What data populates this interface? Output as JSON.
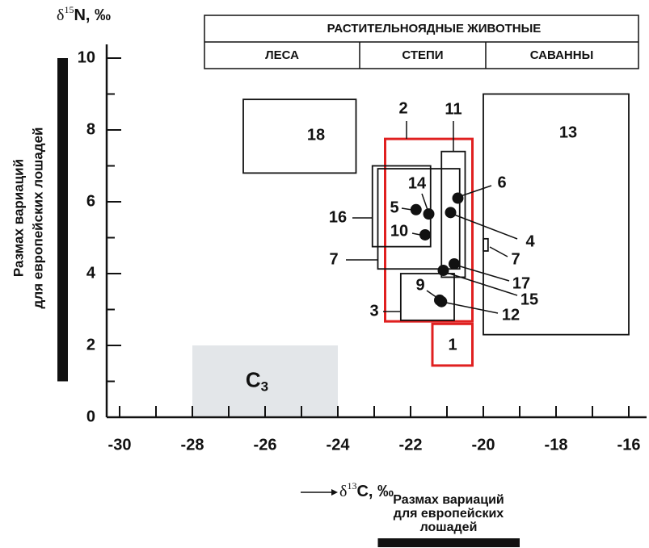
{
  "chart_data": {
    "type": "range-scatter",
    "y_label": {
      "symbol": "δ",
      "sup": "15",
      "text": "N, ‰"
    },
    "x_label": {
      "symbol": "δ",
      "sup": "13",
      "text": "C, ‰"
    },
    "header": {
      "title": "РАСТИТЕЛЬНОЯДНЫЕ  ЖИВОТНЫЕ",
      "columns": [
        "ЛЕСА",
        "СТЕПИ",
        "САВАННЫ"
      ]
    },
    "horse_range_y": {
      "label": [
        "Размах вариаций",
        "для европейских лошадей"
      ],
      "range": [
        1,
        10
      ]
    },
    "horse_range_x": {
      "label": [
        "Размах вариаций",
        "для европейских",
        "лошадей"
      ],
      "range": [
        -22.9,
        -19
      ]
    },
    "c3_region": {
      "text": "C",
      "sub": "3",
      "x": [
        -28,
        -24
      ],
      "y": [
        0,
        2
      ],
      "color": "#e3e6e9"
    },
    "xlim": [
      -30,
      -16
    ],
    "xticks": [
      -30,
      -28,
      -26,
      -24,
      -22,
      -20,
      -18,
      -16
    ],
    "ylim": [
      0,
      10
    ],
    "yticks": [
      0,
      2,
      4,
      6,
      8,
      10
    ],
    "rects": [
      {
        "label": "18",
        "x": [
          -26.6,
          -23.5
        ],
        "y": [
          6.8,
          8.85
        ],
        "color": "#111111"
      },
      {
        "label": "13",
        "x": [
          -20,
          -16
        ],
        "y": [
          2.3,
          9.0
        ],
        "color": "#111111"
      },
      {
        "label": "2",
        "x": [
          -22.7,
          -20.3
        ],
        "y": [
          2.67,
          7.75
        ],
        "color": "#e02020"
      },
      {
        "label": "1",
        "x": [
          -21.4,
          -20.3
        ],
        "y": [
          1.44,
          2.6
        ],
        "color": "#e02020"
      },
      {
        "label": "11",
        "x": [
          -21.15,
          -20.5
        ],
        "y": [
          3.9,
          7.4
        ],
        "color": "#111111"
      },
      {
        "label": "16",
        "x": [
          -23.05,
          -21.45
        ],
        "y": [
          4.75,
          7.0
        ],
        "color": "#111111"
      },
      {
        "label": "7",
        "x": [
          -22.9,
          -20.65
        ],
        "y": [
          4.13,
          6.92
        ],
        "color": "#111111"
      },
      {
        "label": "3",
        "x": [
          -22.27,
          -20.8
        ],
        "y": [
          2.7,
          4.0
        ],
        "color": "#111111"
      },
      {
        "label": "7",
        "x": [
          -20.0,
          -19.87
        ],
        "y": [
          4.63,
          4.97
        ],
        "color": "#111111"
      }
    ],
    "points": [
      {
        "label": "6",
        "x": -20.7,
        "y": 6.1
      },
      {
        "label": "4",
        "x": -20.9,
        "y": 5.7
      },
      {
        "label": "5",
        "x": -21.85,
        "y": 5.78
      },
      {
        "label": "14",
        "x": -21.5,
        "y": 5.66
      },
      {
        "label": "10",
        "x": -21.6,
        "y": 5.08
      },
      {
        "label": "15",
        "x": -21.1,
        "y": 4.09
      },
      {
        "label": "17",
        "x": -20.8,
        "y": 4.27
      },
      {
        "label": "9",
        "x": -21.2,
        "y": 3.26
      },
      {
        "label": "12",
        "x": -21.15,
        "y": 3.22
      }
    ]
  }
}
